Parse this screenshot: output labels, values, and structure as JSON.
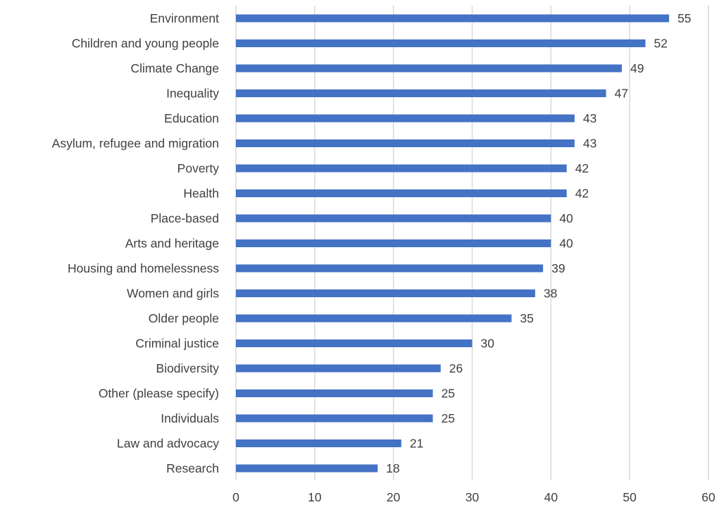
{
  "chart_data": {
    "type": "bar",
    "orientation": "horizontal",
    "title": "",
    "xlabel": "",
    "ylabel": "",
    "categories": [
      "Environment",
      "Children and young people",
      "Climate Change",
      "Inequality",
      "Education",
      "Asylum, refugee and migration",
      "Poverty",
      "Health",
      "Place-based",
      "Arts and heritage",
      "Housing and homelessness",
      "Women and girls",
      "Older people",
      "Criminal justice",
      "Biodiversity",
      "Other (please specify)",
      "Individuals",
      "Law and advocacy",
      "Research"
    ],
    "values": [
      55,
      52,
      49,
      47,
      43,
      43,
      42,
      42,
      40,
      40,
      39,
      38,
      35,
      30,
      26,
      25,
      25,
      21,
      18
    ],
    "xlim": [
      0,
      60
    ],
    "xticks": [
      0,
      10,
      20,
      30,
      40,
      50,
      60
    ],
    "grid": "vertical",
    "data_labels": true,
    "legend": "none",
    "colors": {
      "bar": "#4472C4",
      "grid": "#D9D9D9",
      "text": "#404040"
    }
  }
}
